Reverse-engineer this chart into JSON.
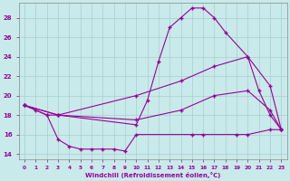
{
  "xlabel": "Windchill (Refroidissement éolien,°C)",
  "bg_color": "#c8eaea",
  "line_color": "#990099",
  "grid_color": "#aacccc",
  "xlim": [
    -0.5,
    23.5
  ],
  "ylim": [
    13.5,
    29.5
  ],
  "yticks": [
    14,
    16,
    18,
    20,
    22,
    24,
    26,
    28
  ],
  "xticks": [
    0,
    1,
    2,
    3,
    4,
    5,
    6,
    7,
    8,
    9,
    10,
    11,
    12,
    13,
    14,
    15,
    16,
    17,
    18,
    19,
    20,
    21,
    22,
    23
  ],
  "series": [
    {
      "x": [
        0,
        1,
        2,
        3,
        10,
        11,
        12,
        13,
        14,
        15,
        16,
        17,
        18,
        20,
        21,
        22,
        23
      ],
      "y": [
        19.0,
        18.5,
        18.0,
        18.0,
        17.0,
        19.5,
        23.5,
        27.0,
        28.0,
        29.0,
        29.0,
        28.0,
        26.5,
        24.0,
        20.5,
        18.0,
        16.5
      ]
    },
    {
      "x": [
        0,
        3,
        10,
        14,
        17,
        20,
        22,
        23
      ],
      "y": [
        19.0,
        18.0,
        20.0,
        21.5,
        23.0,
        24.0,
        21.0,
        16.5
      ]
    },
    {
      "x": [
        0,
        3,
        10,
        14,
        17,
        20,
        22,
        23
      ],
      "y": [
        19.0,
        18.0,
        17.5,
        18.5,
        20.0,
        20.5,
        18.5,
        16.5
      ]
    },
    {
      "x": [
        0,
        2,
        3,
        4,
        5,
        6,
        7,
        8,
        9,
        10,
        15,
        16,
        19,
        20,
        22,
        23
      ],
      "y": [
        19.0,
        18.0,
        15.5,
        14.8,
        14.5,
        14.5,
        14.5,
        14.5,
        14.3,
        16.0,
        16.0,
        16.0,
        16.0,
        16.0,
        16.5,
        16.5
      ]
    }
  ]
}
